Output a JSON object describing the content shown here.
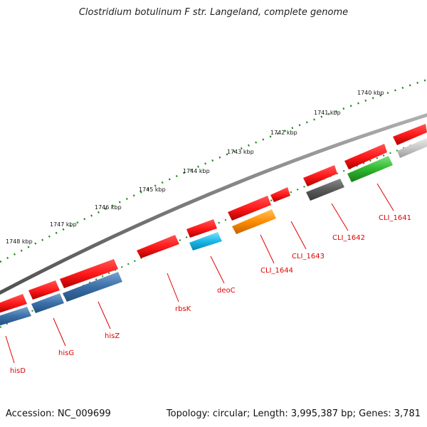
{
  "title": "Clostridium botulinum F str. Langeland, complete genome",
  "footer": {
    "accession": "Accession: NC_009699",
    "summary": "Topology: circular; Length: 3,995,387 bp; Genes: 3,781"
  },
  "kbp_labels": [
    "1740 kbp",
    "1741 kbp",
    "1742 kbp",
    "1743 kbp",
    "1744 kbp",
    "1745 kbp",
    "1746 kbp",
    "1747 kbp",
    "1748 kbp"
  ],
  "gene_labels": [
    "CLI_1641",
    "CLI_1642",
    "CLI_1643",
    "CLI_1644",
    "deoC",
    "rbsK",
    "hisZ",
    "hisG",
    "hisD"
  ],
  "colors": {
    "forward": "#ff1a1a",
    "backbone": "#808080",
    "ticks": "#1a8a1a",
    "label": "#e00000",
    "cli_1641": "#2eb82e",
    "cli_1642": "#5a5a5a",
    "cli_1644": "#ff8c00",
    "deoC": "#1ab8e8",
    "his": "#3a6fa8",
    "grey_gene": "#c8c8c8"
  }
}
